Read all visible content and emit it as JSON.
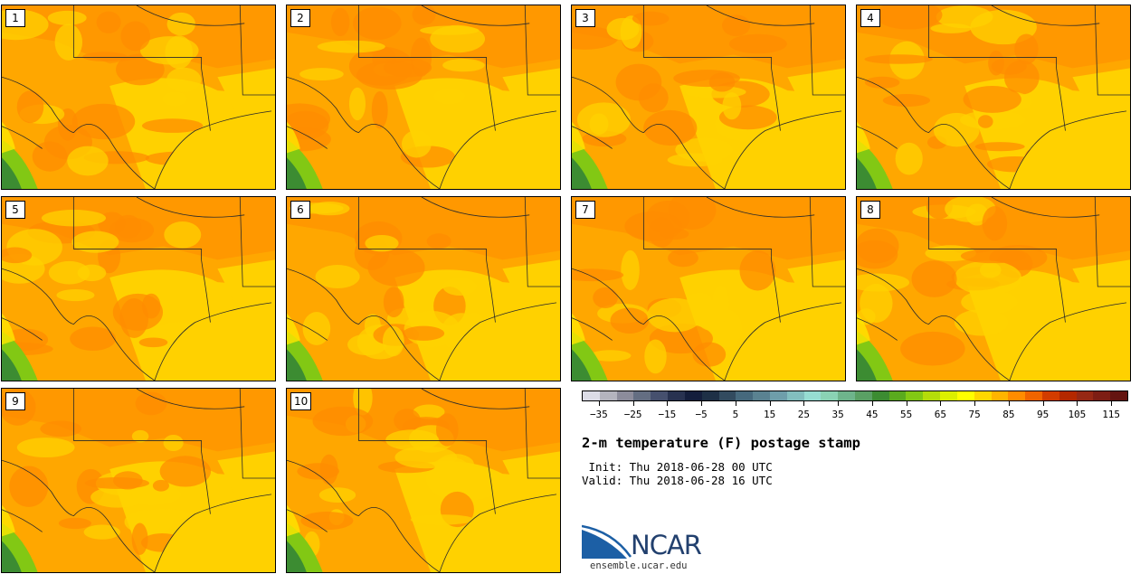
{
  "panels": [
    {
      "label": "1"
    },
    {
      "label": "2"
    },
    {
      "label": "3"
    },
    {
      "label": "4"
    },
    {
      "label": "5"
    },
    {
      "label": "6"
    },
    {
      "label": "7"
    },
    {
      "label": "8"
    },
    {
      "label": "9"
    },
    {
      "label": "10"
    }
  ],
  "colorbar": {
    "colors": [
      "#dcdce6",
      "#b4b4be",
      "#8c8c9b",
      "#646e82",
      "#46506e",
      "#283250",
      "#141e3c",
      "#1e3046",
      "#324b5f",
      "#46697d",
      "#5a8291",
      "#6e9eaa",
      "#82bebe",
      "#96dcd2",
      "#8ad2b4",
      "#6eb48c",
      "#5aa064",
      "#3c8c32",
      "#5aaa1e",
      "#82c814",
      "#b4dc0a",
      "#dcf000",
      "#ffff00",
      "#ffd700",
      "#ffb400",
      "#ff8c00",
      "#f06400",
      "#d23c00",
      "#b42800",
      "#962814",
      "#7d1e14",
      "#641410"
    ],
    "tick_labels": [
      "−35",
      "−25",
      "−15",
      "−5",
      "5",
      "15",
      "25",
      "35",
      "45",
      "55",
      "65",
      "75",
      "85",
      "95",
      "105",
      "115"
    ]
  },
  "title": "2-m temperature (F) postage stamp",
  "init": " Init: Thu 2018-06-28 00 UTC",
  "valid": "Valid: Thu 2018-06-28 16 UTC",
  "logo": {
    "text": "NCAR",
    "colors": {
      "swoosh": "#1c5fa5",
      "text": "#22406e"
    }
  },
  "url": "ensemble.ucar.edu",
  "map_colors": {
    "orange": "#ffa700",
    "dark_orange": "#ff8c00",
    "yellow": "#ffd100",
    "light_yellow": "#ffe600",
    "green": "#82c814",
    "dark_green": "#3c8c32",
    "border": "#2a2a2a"
  }
}
